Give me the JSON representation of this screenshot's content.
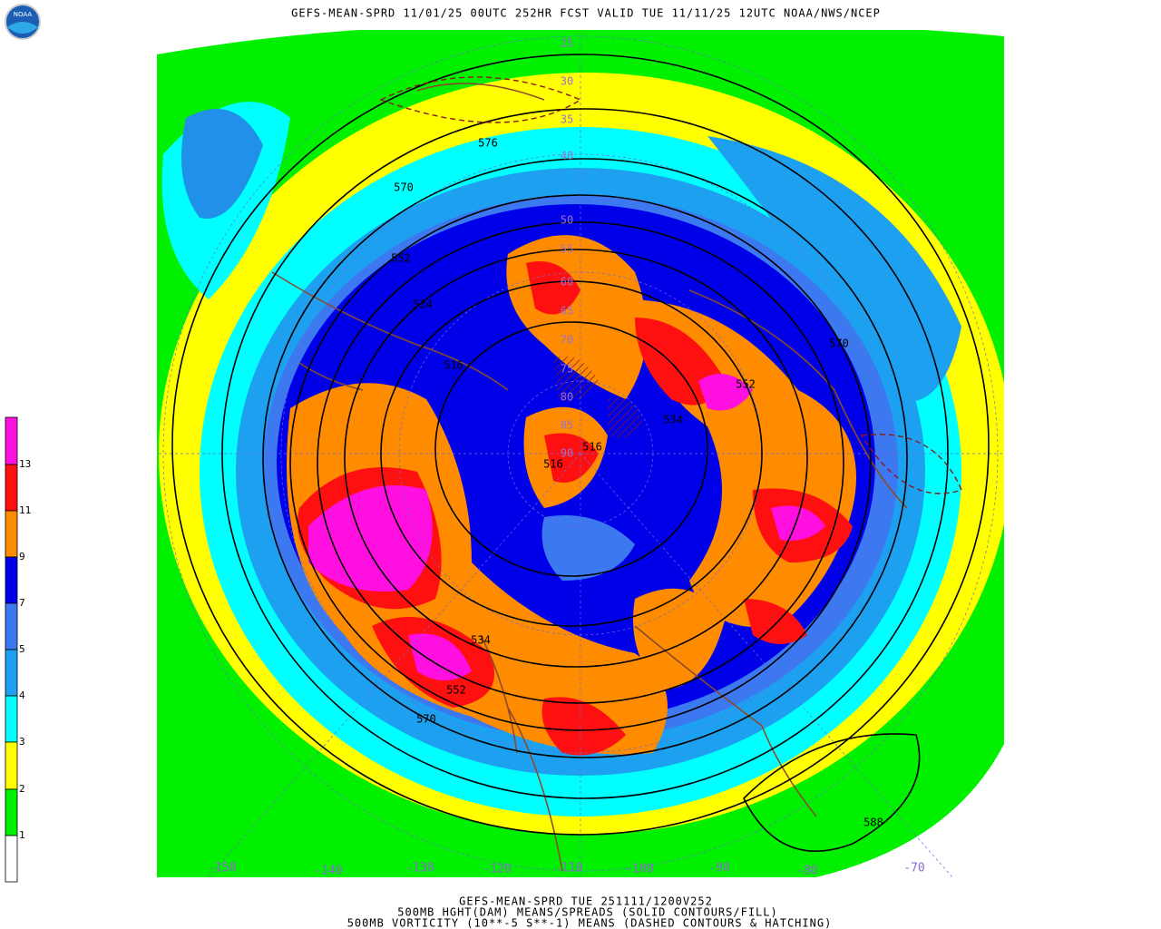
{
  "header": {
    "title": "GEFS-MEAN-SPRD 11/01/25 00UTC 252HR FCST VALID TUE 11/11/25 12UTC NOAA/NWS/NCEP",
    "logo": "NOAA"
  },
  "footer": [
    "GEFS-MEAN-SPRD TUE 251111/1200V252",
    "500MB HGHT(DAM) MEANS/SPREADS (SOLID CONTOURS/FILL)",
    "500MB VORTICITY (10**-5 S**-1) MEANS (DASHED CONTOURS & HATCHING)"
  ],
  "legend": {
    "labels": [
      "13",
      "11",
      "9",
      "7",
      "5",
      "4",
      "3",
      "2",
      "1"
    ]
  },
  "contour_labels": [
    "570",
    "576",
    "552",
    "534",
    "516",
    "516",
    "516",
    "534",
    "552",
    "570",
    "534",
    "552",
    "570",
    "588"
  ],
  "latitude_labels": [
    "25",
    "30",
    "35",
    "40",
    "50",
    "55",
    "60",
    "65",
    "70",
    "75",
    "80",
    "85",
    "90"
  ],
  "longitude_labels": [
    "-150",
    "-140",
    "-130",
    "-120",
    "-110",
    "-100",
    "-90",
    "-80",
    "-70"
  ]
}
